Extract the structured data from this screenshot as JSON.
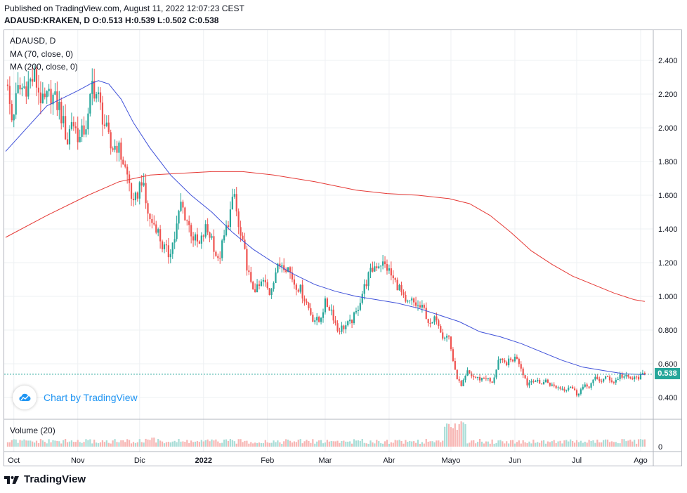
{
  "header": {
    "published": "Published on TradingView.com, August 11, 2022 12:07:23 CEST",
    "ohlc_line": "ADAUSD:KRAKEN, D O:0.513 H:0.539 L:0.502 C:0.538"
  },
  "legend": {
    "symbol": "ADAUSD, D",
    "ma70": "MA (70, close, 0)",
    "ma200": "MA (200, close, 0)",
    "volume": "Volume (20)"
  },
  "watermark": {
    "text": "Chart by TradingView"
  },
  "footer": {
    "brand": "TradingView"
  },
  "colors": {
    "up": "#26a69a",
    "down": "#ef5350",
    "ma70": "#3f51d9",
    "ma200": "#e53935"
  },
  "last_price_label": "0.538",
  "chart_data": {
    "type": "candlestick",
    "title": "ADAUSD, D",
    "y_ticks": [
      "2.400",
      "2.200",
      "2.000",
      "1.800",
      "1.600",
      "1.400",
      "1.200",
      "1.000",
      "0.800",
      "0.600",
      "0.400"
    ],
    "ylim": [
      0.3,
      2.5
    ],
    "volume_tick": "0",
    "x_ticks": [
      {
        "label": "Oct",
        "day": 4
      },
      {
        "label": "Nov",
        "day": 35
      },
      {
        "label": "Dic",
        "day": 65
      },
      {
        "label": "2022",
        "day": 96
      },
      {
        "label": "Feb",
        "day": 127
      },
      {
        "label": "Mar",
        "day": 155
      },
      {
        "label": "Abr",
        "day": 186
      },
      {
        "label": "Mayo",
        "day": 216
      },
      {
        "label": "Jun",
        "day": 247
      },
      {
        "label": "Jul",
        "day": 277
      },
      {
        "label": "Ago",
        "day": 308
      }
    ],
    "close_anchors": [
      [
        0,
        2.3
      ],
      [
        3,
        2.05
      ],
      [
        6,
        2.22
      ],
      [
        10,
        2.25
      ],
      [
        14,
        2.3
      ],
      [
        18,
        2.14
      ],
      [
        22,
        2.2
      ],
      [
        26,
        2.12
      ],
      [
        30,
        1.92
      ],
      [
        32,
        2.05
      ],
      [
        36,
        1.93
      ],
      [
        40,
        2.05
      ],
      [
        42,
        2.26
      ],
      [
        45,
        2.17
      ],
      [
        48,
        2.02
      ],
      [
        51,
        1.88
      ],
      [
        54,
        1.9
      ],
      [
        57,
        1.8
      ],
      [
        60,
        1.67
      ],
      [
        62,
        1.53
      ],
      [
        66,
        1.7
      ],
      [
        68,
        1.55
      ],
      [
        70,
        1.45
      ],
      [
        73,
        1.42
      ],
      [
        76,
        1.3
      ],
      [
        79,
        1.25
      ],
      [
        82,
        1.35
      ],
      [
        85,
        1.55
      ],
      [
        88,
        1.45
      ],
      [
        91,
        1.35
      ],
      [
        94,
        1.3
      ],
      [
        97,
        1.4
      ],
      [
        100,
        1.35
      ],
      [
        103,
        1.2
      ],
      [
        106,
        1.35
      ],
      [
        109,
        1.5
      ],
      [
        111,
        1.6
      ],
      [
        113,
        1.4
      ],
      [
        116,
        1.25
      ],
      [
        119,
        1.06
      ],
      [
        122,
        1.04
      ],
      [
        125,
        1.09
      ],
      [
        128,
        1.02
      ],
      [
        131,
        1.15
      ],
      [
        134,
        1.2
      ],
      [
        137,
        1.17
      ],
      [
        140,
        1.08
      ],
      [
        143,
        1.04
      ],
      [
        146,
        0.96
      ],
      [
        149,
        0.87
      ],
      [
        152,
        0.85
      ],
      [
        155,
        0.96
      ],
      [
        158,
        0.92
      ],
      [
        161,
        0.8
      ],
      [
        164,
        0.82
      ],
      [
        167,
        0.84
      ],
      [
        170,
        0.9
      ],
      [
        173,
        1.02
      ],
      [
        176,
        1.12
      ],
      [
        179,
        1.18
      ],
      [
        182,
        1.2
      ],
      [
        185,
        1.17
      ],
      [
        188,
        1.1
      ],
      [
        191,
        1.05
      ],
      [
        194,
        0.95
      ],
      [
        197,
        0.97
      ],
      [
        200,
        0.94
      ],
      [
        203,
        0.92
      ],
      [
        206,
        0.82
      ],
      [
        209,
        0.88
      ],
      [
        212,
        0.77
      ],
      [
        215,
        0.76
      ],
      [
        218,
        0.55
      ],
      [
        221,
        0.46
      ],
      [
        224,
        0.55
      ],
      [
        227,
        0.52
      ],
      [
        230,
        0.51
      ],
      [
        233,
        0.52
      ],
      [
        236,
        0.48
      ],
      [
        239,
        0.62
      ],
      [
        242,
        0.6
      ],
      [
        245,
        0.62
      ],
      [
        248,
        0.64
      ],
      [
        250,
        0.58
      ],
      [
        253,
        0.48
      ],
      [
        256,
        0.51
      ],
      [
        259,
        0.48
      ],
      [
        262,
        0.5
      ],
      [
        265,
        0.47
      ],
      [
        268,
        0.46
      ],
      [
        271,
        0.45
      ],
      [
        274,
        0.47
      ],
      [
        277,
        0.42
      ],
      [
        280,
        0.46
      ],
      [
        283,
        0.47
      ],
      [
        286,
        0.51
      ],
      [
        289,
        0.5
      ],
      [
        292,
        0.52
      ],
      [
        295,
        0.49
      ],
      [
        298,
        0.53
      ],
      [
        301,
        0.52
      ],
      [
        304,
        0.51
      ],
      [
        307,
        0.52
      ],
      [
        310,
        0.538
      ]
    ],
    "ma70": [
      [
        0,
        1.86
      ],
      [
        20,
        2.13
      ],
      [
        35,
        2.22
      ],
      [
        41,
        2.26
      ],
      [
        45,
        2.28
      ],
      [
        50,
        2.26
      ],
      [
        56,
        2.17
      ],
      [
        62,
        2.03
      ],
      [
        70,
        1.88
      ],
      [
        80,
        1.72
      ],
      [
        90,
        1.6
      ],
      [
        100,
        1.5
      ],
      [
        110,
        1.38
      ],
      [
        120,
        1.28
      ],
      [
        130,
        1.2
      ],
      [
        140,
        1.13
      ],
      [
        150,
        1.07
      ],
      [
        160,
        1.03
      ],
      [
        170,
        1.0
      ],
      [
        180,
        0.98
      ],
      [
        190,
        0.96
      ],
      [
        200,
        0.93
      ],
      [
        210,
        0.89
      ],
      [
        220,
        0.85
      ],
      [
        230,
        0.79
      ],
      [
        240,
        0.76
      ],
      [
        250,
        0.72
      ],
      [
        260,
        0.67
      ],
      [
        270,
        0.62
      ],
      [
        280,
        0.58
      ],
      [
        290,
        0.56
      ],
      [
        300,
        0.54
      ],
      [
        310,
        0.536
      ]
    ],
    "ma200": [
      [
        0,
        1.35
      ],
      [
        20,
        1.48
      ],
      [
        40,
        1.6
      ],
      [
        55,
        1.68
      ],
      [
        70,
        1.72
      ],
      [
        85,
        1.73
      ],
      [
        100,
        1.74
      ],
      [
        115,
        1.74
      ],
      [
        130,
        1.72
      ],
      [
        150,
        1.68
      ],
      [
        170,
        1.63
      ],
      [
        185,
        1.61
      ],
      [
        200,
        1.6
      ],
      [
        215,
        1.58
      ],
      [
        225,
        1.55
      ],
      [
        235,
        1.48
      ],
      [
        245,
        1.38
      ],
      [
        255,
        1.27
      ],
      [
        265,
        1.19
      ],
      [
        275,
        1.12
      ],
      [
        285,
        1.07
      ],
      [
        295,
        1.02
      ],
      [
        305,
        0.98
      ],
      [
        310,
        0.97
      ]
    ]
  }
}
